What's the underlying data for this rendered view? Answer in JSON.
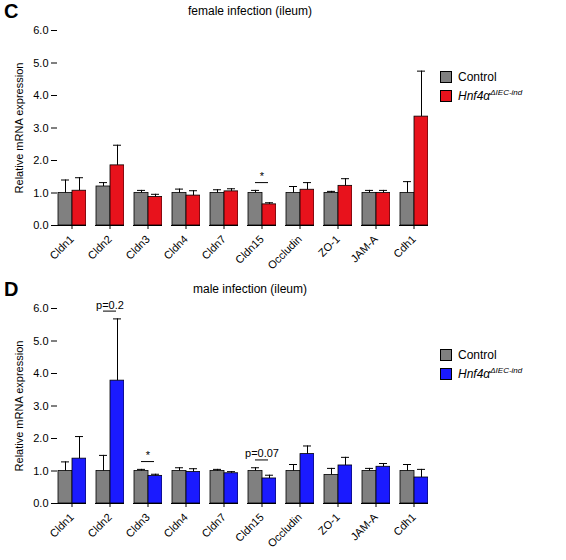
{
  "chart_data": [
    {
      "type": "bar",
      "panel": "C",
      "title": "female infection (ileum)",
      "y_label": "Relative mRNA expression",
      "categories": [
        "Cldn1",
        "Cldn2",
        "Cldn3",
        "Cldn4",
        "Cldn7",
        "Cldn15",
        "Occludin",
        "ZO-1",
        "JAM-A",
        "Cdh1"
      ],
      "series": [
        {
          "name": "Control",
          "color": "#808080",
          "values": [
            1.0,
            1.2,
            1.0,
            1.0,
            1.0,
            1.0,
            1.0,
            1.0,
            1.0,
            1.0
          ],
          "errors": [
            0.4,
            0.12,
            0.08,
            0.12,
            0.1,
            0.08,
            0.2,
            0.05,
            0.08,
            0.35
          ]
        },
        {
          "name": "Hnf4αΔIEC-ind",
          "color": "#e8121c",
          "values": [
            1.07,
            1.85,
            0.88,
            0.92,
            1.05,
            0.65,
            1.1,
            1.22,
            1.0,
            3.35
          ],
          "errors": [
            0.4,
            0.62,
            0.08,
            0.15,
            0.08,
            0.05,
            0.22,
            0.22,
            0.08,
            1.4
          ]
        }
      ],
      "ylim": [
        0,
        6
      ],
      "yticks": [
        0,
        1,
        2,
        3,
        4,
        5,
        6
      ],
      "legend": "right",
      "annotations": [
        {
          "category": "Cldn15",
          "text": "*"
        }
      ]
    },
    {
      "type": "bar",
      "panel": "D",
      "title": "male infection (ileum)",
      "y_label": "Relative mRNA expression",
      "categories": [
        "Cldn1",
        "Cldn2",
        "Cldn3",
        "Cldn4",
        "Cldn7",
        "Cldn15",
        "Occludin",
        "ZO-1",
        "JAM-A",
        "Cdh1"
      ],
      "series": [
        {
          "name": "Control",
          "color": "#808080",
          "values": [
            1.0,
            1.0,
            1.0,
            1.0,
            1.0,
            1.0,
            1.0,
            0.88,
            1.0,
            1.0
          ],
          "errors": [
            0.28,
            0.48,
            0.05,
            0.1,
            0.05,
            0.1,
            0.2,
            0.2,
            0.08,
            0.2
          ]
        },
        {
          "name": "Hnf4αΔIEC-ind",
          "color": "#1a1aff",
          "values": [
            1.38,
            3.78,
            0.85,
            0.97,
            0.93,
            0.77,
            1.52,
            1.17,
            1.13,
            0.8
          ],
          "errors": [
            0.68,
            1.9,
            0.05,
            0.1,
            0.05,
            0.1,
            0.25,
            0.25,
            0.1,
            0.25
          ]
        }
      ],
      "ylim": [
        0,
        6
      ],
      "yticks": [
        0,
        1,
        2,
        3,
        4,
        5,
        6
      ],
      "legend": "right",
      "annotations": [
        {
          "category": "Cldn2",
          "text": "p=0.2"
        },
        {
          "category": "Cldn3",
          "text": "*"
        },
        {
          "category": "Cldn15",
          "text": "p=0.07"
        }
      ]
    }
  ]
}
